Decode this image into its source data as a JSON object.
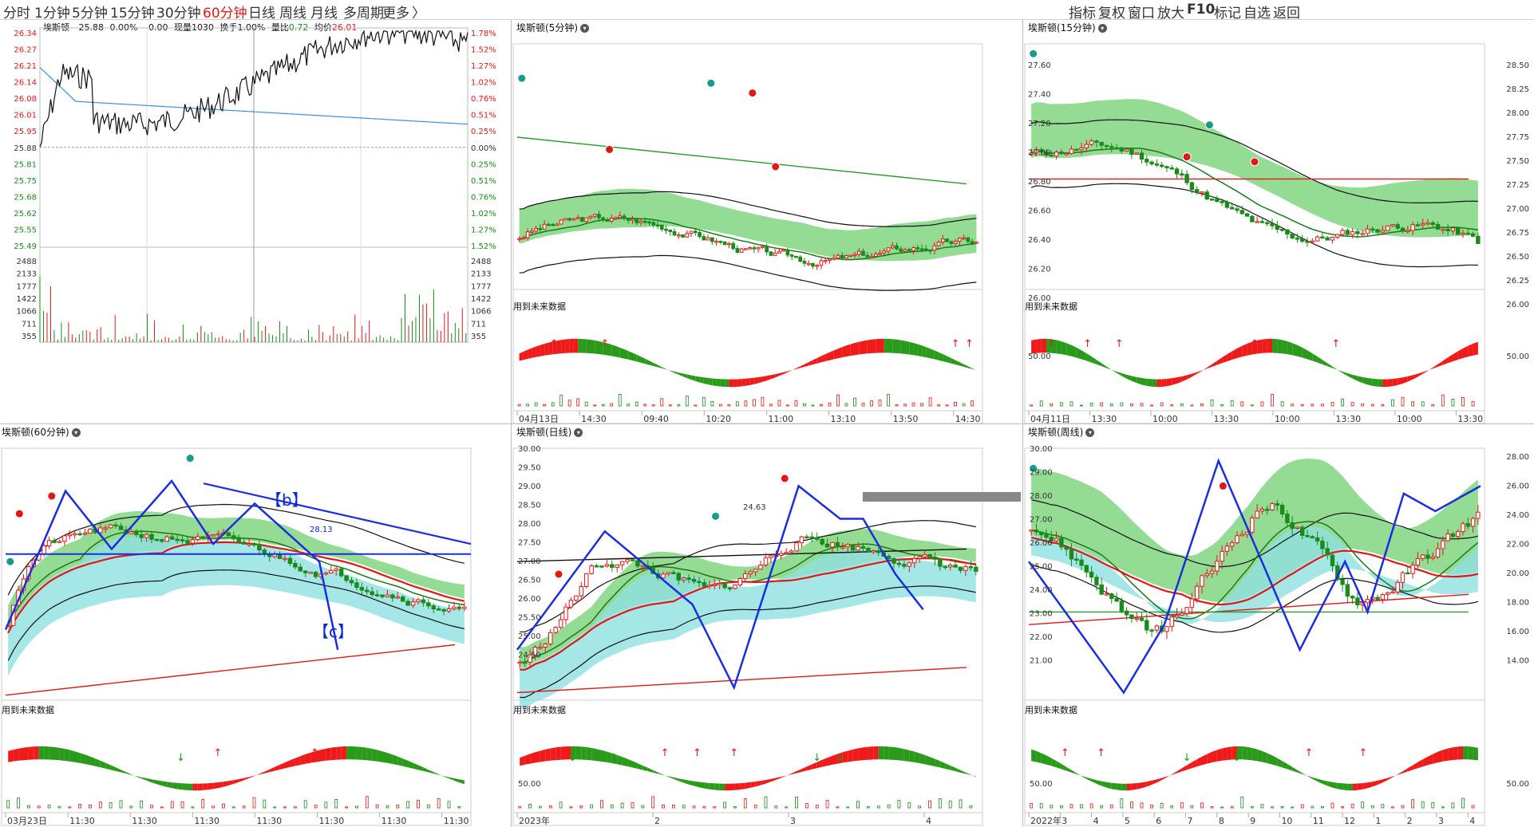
{
  "toolbar": {
    "periods": [
      "分时",
      "1分钟",
      "5分钟",
      "15分钟",
      "30分钟",
      "60分钟",
      "日线",
      "周线",
      "月线",
      "多周期",
      "更多"
    ],
    "active_period": "60分钟",
    "more_arrow": "〉",
    "right_tools": [
      "指标",
      "复权",
      "窗口",
      "放大",
      "F10",
      "标记",
      "自选",
      "返回"
    ]
  },
  "intraday": {
    "stock": "埃斯顿",
    "price": "25.88",
    "pct": "0.00%",
    "change": "0.00",
    "vol_label": "现量",
    "vol": "1030",
    "turnover_label": "换手",
    "turnover": "1.00%",
    "ratio_label": "量比",
    "ratio": "0.72",
    "avg_label": "均价",
    "avg": "26.01",
    "price_ticks": [
      "26.34",
      "26.27",
      "26.21",
      "26.14",
      "26.08",
      "26.01",
      "25.95",
      "25.88",
      "25.81",
      "25.75",
      "25.68",
      "25.62",
      "25.55",
      "25.49"
    ],
    "pct_ticks": [
      "1.78%",
      "1.52%",
      "1.27%",
      "1.02%",
      "0.76%",
      "0.51%",
      "0.25%",
      "0.00%",
      "0.25%",
      "0.51%",
      "0.76%",
      "1.02%",
      "1.27%",
      "1.52%"
    ],
    "vol_ticks": [
      "2488",
      "2133",
      "1777",
      "1422",
      "1066",
      "711",
      "355"
    ],
    "colors": {
      "up": "#e01818",
      "down": "#1a8a1a",
      "avg_line": "#3a8fd8",
      "price_line": "#111111"
    }
  },
  "panels": {
    "min5": {
      "title": "埃斯顿(5分钟)",
      "future_label": "用到未来数据",
      "x_labels": [
        "04月13日",
        "14:30",
        "09:40",
        "10:20",
        "11:00",
        "13:10",
        "13:50",
        "14:30"
      ]
    },
    "min15": {
      "title": "埃斯顿(15分钟)",
      "future_label": "用到未来数据",
      "left_ticks": [
        "27.60",
        "27.40",
        "27.20",
        "27.00",
        "26.80",
        "26.60",
        "26.40",
        "26.20",
        "26.00"
      ],
      "right_ticks": [
        "28.50",
        "28.25",
        "28.00",
        "27.75",
        "27.50",
        "27.25",
        "27.00",
        "26.75",
        "26.50",
        "26.25",
        "26.00"
      ],
      "osc_left": "50.00",
      "osc_right": "50.00",
      "x_labels": [
        "04月11日",
        "13:30",
        "10:00",
        "13:30",
        "10:00",
        "13:30",
        "10:00",
        "13:30"
      ]
    },
    "min60": {
      "title": "埃斯顿(60分钟)",
      "future_label": "用到未来数据",
      "wave_b": "【b】",
      "wave_c": "【c】",
      "level": "28.13",
      "x_labels": [
        "03月23日",
        "11:30",
        "11:30",
        "11:30",
        "11:30",
        "11:30",
        "11:30",
        "11:30"
      ]
    },
    "daily": {
      "title": "埃斯顿(日线)",
      "future_label": "用到未来数据",
      "left_ticks": [
        "30.00",
        "29.50",
        "29.00",
        "28.50",
        "28.00",
        "27.50",
        "27.00",
        "26.50",
        "26.00",
        "25.50",
        "25.00",
        "24.50"
      ],
      "osc_left": "50.00",
      "low_marker": "24.63",
      "x_labels": [
        "2023年",
        "2",
        "3",
        "4"
      ]
    },
    "weekly": {
      "title": "埃斯顿(周线)",
      "future_label": "用到未来数据",
      "left_ticks": [
        "30.00",
        "29.00",
        "28.00",
        "27.00",
        "26.00",
        "25.00",
        "24.00",
        "23.00",
        "22.00",
        "21.00"
      ],
      "right_ticks": [
        "28.00",
        "26.00",
        "24.00",
        "22.00",
        "20.00",
        "18.00",
        "16.00",
        "14.00"
      ],
      "osc_left": "50.00",
      "osc_right": "50.00",
      "x_labels": [
        "2022年",
        "3",
        "4",
        "5",
        "6",
        "7",
        "8",
        "9",
        "10",
        "11",
        "12",
        "1",
        "2",
        "3",
        "4"
      ]
    }
  }
}
